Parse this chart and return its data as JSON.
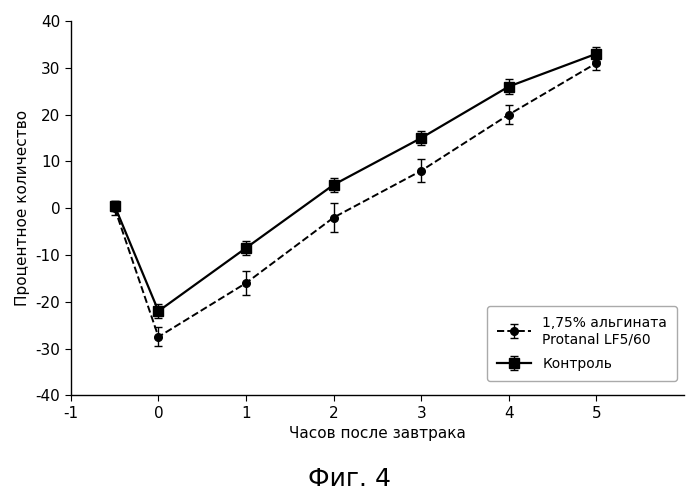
{
  "alginate_x": [
    -0.5,
    0,
    1,
    2,
    3,
    4,
    5
  ],
  "alginate_y": [
    0,
    -27.5,
    -16,
    -2,
    8,
    20,
    31
  ],
  "alginate_yerr": [
    1.5,
    2.0,
    2.5,
    3.0,
    2.5,
    2.0,
    1.5
  ],
  "control_x": [
    -0.5,
    0,
    1,
    2,
    3,
    4,
    5
  ],
  "control_y": [
    0.5,
    -22,
    -8.5,
    5,
    15,
    26,
    33
  ],
  "control_yerr": [
    1.0,
    1.5,
    1.5,
    1.5,
    1.5,
    1.5,
    1.5
  ],
  "xlabel": "Часов после завтрака",
  "ylabel": "Процентное количество",
  "label_alginate": "1,75% альгината\nProtanal LF5/60",
  "label_control": "Контроль",
  "title": "Фиг. 4",
  "xlim": [
    -1,
    6
  ],
  "ylim": [
    -40,
    40
  ],
  "xticks": [
    -1,
    0,
    1,
    2,
    3,
    4,
    5
  ],
  "yticks": [
    -40,
    -30,
    -20,
    -10,
    0,
    10,
    20,
    30,
    40
  ],
  "background_color": "#ffffff",
  "line_color": "#000000"
}
